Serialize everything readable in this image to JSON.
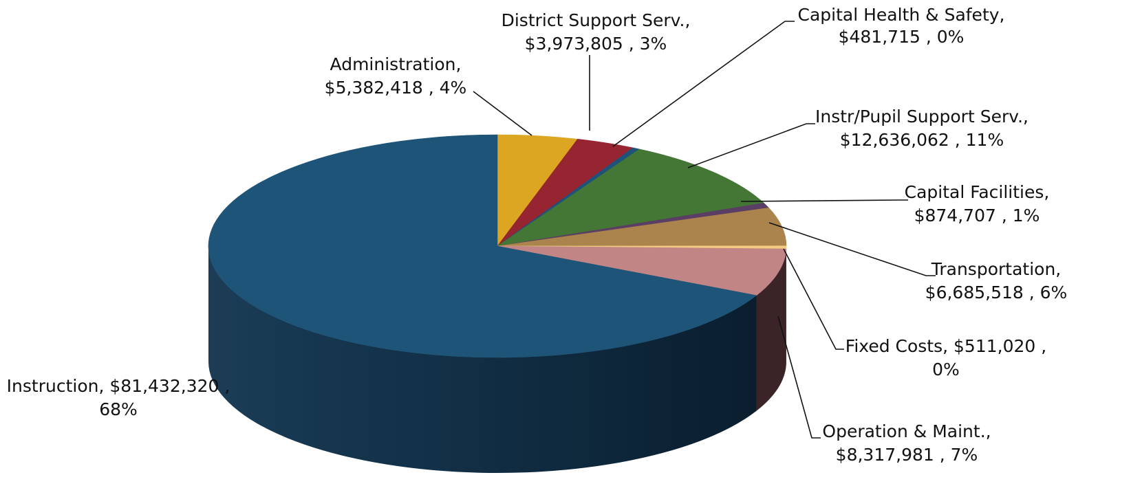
{
  "chart_data": {
    "type": "pie",
    "title": "",
    "style": "3d-tilted",
    "legend": "none",
    "slices": [
      {
        "name": "Administration",
        "value": 5382418,
        "value_label": "$5,382,418",
        "percent_label": "4%",
        "color": "#DDA622"
      },
      {
        "name": "District Support Serv.",
        "value": 3973805,
        "value_label": "$3,973,805",
        "percent_label": "3%",
        "color": "#962431"
      },
      {
        "name": "Capital Health & Safety",
        "value": 481715,
        "value_label": "$481,715",
        "percent_label": "0%",
        "color": "#1D527A"
      },
      {
        "name": "Instr/Pupil Support Serv.",
        "value": 12636062,
        "value_label": "$12,636,062",
        "percent_label": "11%",
        "color": "#447636"
      },
      {
        "name": "Capital Facilities",
        "value": 874707,
        "value_label": "$874,707",
        "percent_label": "1%",
        "color": "#5A3E63"
      },
      {
        "name": "Transportation",
        "value": 6685518,
        "value_label": "$6,685,518",
        "percent_label": "6%",
        "color": "#AA844C"
      },
      {
        "name": "Fixed Costs",
        "value": 511020,
        "value_label": "$511,020",
        "percent_label": "0%",
        "color": "#F3CB82"
      },
      {
        "name": "Operation & Maint.",
        "value": 8317981,
        "value_label": "$8,317,981",
        "percent_label": "7%",
        "color": "#C18586"
      },
      {
        "name": "Instruction",
        "value": 81432320,
        "value_label": "$81,432,320",
        "percent_label": "68%",
        "color": "#1E5477"
      }
    ]
  }
}
